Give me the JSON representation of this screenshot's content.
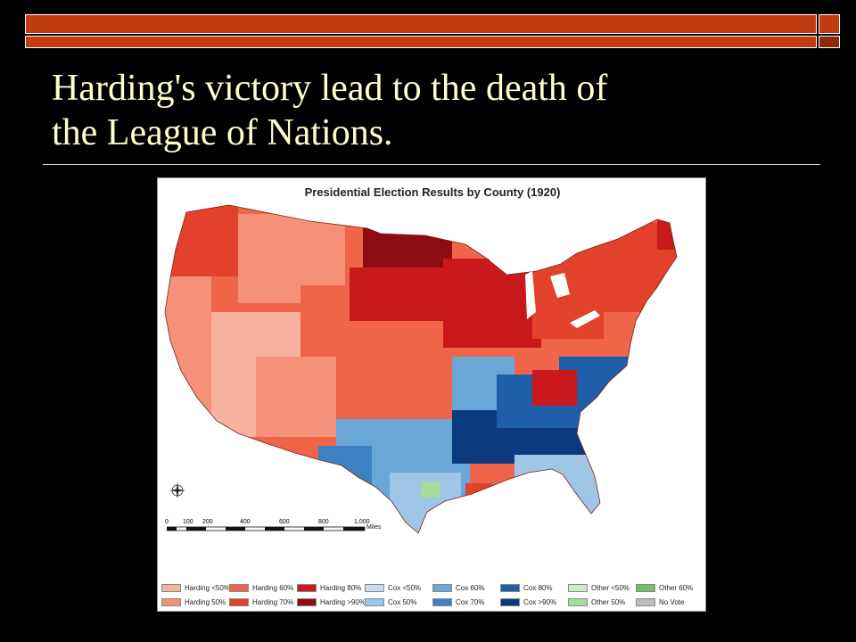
{
  "slide": {
    "title_line1": "Harding's victory lead to the death of",
    "title_line2": "the League of Nations."
  },
  "map": {
    "title": "Presidential Election Results by County (1920)",
    "scale_labels": [
      "0",
      "100",
      "200",
      "400",
      "600",
      "800",
      "1,000"
    ],
    "scale_unit": "Miles",
    "legend": [
      {
        "label": "Harding <50%",
        "color": "#f7b29f"
      },
      {
        "label": "Harding 50%",
        "color": "#f59178"
      },
      {
        "label": "Harding 60%",
        "color": "#f0654a"
      },
      {
        "label": "Harding 70%",
        "color": "#e2412c"
      },
      {
        "label": "Harding 80%",
        "color": "#c81a1c"
      },
      {
        "label": "Harding >90%",
        "color": "#8f0b12"
      },
      {
        "label": "Cox <50%",
        "color": "#c9ddf0"
      },
      {
        "label": "Cox 50%",
        "color": "#9fc6e6"
      },
      {
        "label": "Cox 60%",
        "color": "#6aa6d6"
      },
      {
        "label": "Cox 70%",
        "color": "#3c81c1"
      },
      {
        "label": "Cox 80%",
        "color": "#1f5ea8"
      },
      {
        "label": "Cox >90%",
        "color": "#0b3a7e"
      },
      {
        "label": "Other <50%",
        "color": "#cfeac8"
      },
      {
        "label": "Other 50%",
        "color": "#a6dba0"
      },
      {
        "label": "Other 60%",
        "color": "#6dbf6d"
      },
      {
        "label": "No Vote",
        "color": "#bdbdbd"
      }
    ]
  }
}
